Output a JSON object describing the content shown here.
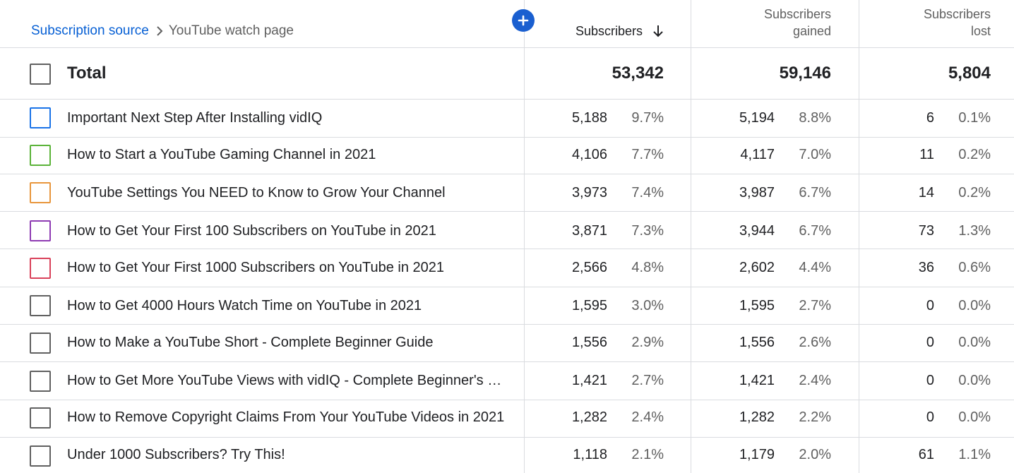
{
  "breadcrumb": {
    "parent": "Subscription source",
    "current": "YouTube watch page"
  },
  "columns": {
    "subscribers": "Subscribers",
    "gained_line1": "Subscribers",
    "gained_line2": "gained",
    "lost_line1": "Subscribers",
    "lost_line2": "lost"
  },
  "total": {
    "label": "Total",
    "subscribers": "53,342",
    "gained": "59,146",
    "lost": "5,804"
  },
  "rows": [
    {
      "title": "Important Next Step After Installing vidIQ",
      "subscribers": "5,188",
      "subscribers_pct": "9.7%",
      "gained": "5,194",
      "gained_pct": "8.8%",
      "lost": "6",
      "lost_pct": "0.1%",
      "color": "#1a73e8"
    },
    {
      "title": "How to Start a YouTube Gaming Channel in 2021",
      "subscribers": "4,106",
      "subscribers_pct": "7.7%",
      "gained": "4,117",
      "gained_pct": "7.0%",
      "lost": "11",
      "lost_pct": "0.2%",
      "color": "#5bb339"
    },
    {
      "title": "YouTube Settings You NEED to Know to Grow Your Channel",
      "subscribers": "3,973",
      "subscribers_pct": "7.4%",
      "gained": "3,987",
      "gained_pct": "6.7%",
      "lost": "14",
      "lost_pct": "0.2%",
      "color": "#e8963c"
    },
    {
      "title": "How to Get Your First 100 Subscribers on YouTube in 2021",
      "subscribers": "3,871",
      "subscribers_pct": "7.3%",
      "gained": "3,944",
      "gained_pct": "6.7%",
      "lost": "73",
      "lost_pct": "1.3%",
      "color": "#8e3bb3"
    },
    {
      "title": "How to Get Your First 1000 Subscribers on YouTube in 2021",
      "subscribers": "2,566",
      "subscribers_pct": "4.8%",
      "gained": "2,602",
      "gained_pct": "4.4%",
      "lost": "36",
      "lost_pct": "0.6%",
      "color": "#d9415a"
    },
    {
      "title": "How to Get 4000 Hours Watch Time on YouTube in 2021",
      "subscribers": "1,595",
      "subscribers_pct": "3.0%",
      "gained": "1,595",
      "gained_pct": "2.7%",
      "lost": "0",
      "lost_pct": "0.0%",
      "color": "#606060"
    },
    {
      "title": "How to Make a YouTube Short - Complete Beginner Guide",
      "subscribers": "1,556",
      "subscribers_pct": "2.9%",
      "gained": "1,556",
      "gained_pct": "2.6%",
      "lost": "0",
      "lost_pct": "0.0%",
      "color": "#606060"
    },
    {
      "title": "How to Get More YouTube Views with vidIQ - Complete Beginner's Guide",
      "subscribers": "1,421",
      "subscribers_pct": "2.7%",
      "gained": "1,421",
      "gained_pct": "2.4%",
      "lost": "0",
      "lost_pct": "0.0%",
      "color": "#606060"
    },
    {
      "title": "How to Remove Copyright Claims From Your YouTube Videos in 2021",
      "subscribers": "1,282",
      "subscribers_pct": "2.4%",
      "gained": "1,282",
      "gained_pct": "2.2%",
      "lost": "0",
      "lost_pct": "0.0%",
      "color": "#606060"
    },
    {
      "title": "Under 1000 Subscribers? Try This!",
      "subscribers": "1,118",
      "subscribers_pct": "2.1%",
      "gained": "1,179",
      "gained_pct": "2.0%",
      "lost": "61",
      "lost_pct": "1.1%",
      "color": "#606060"
    }
  ]
}
